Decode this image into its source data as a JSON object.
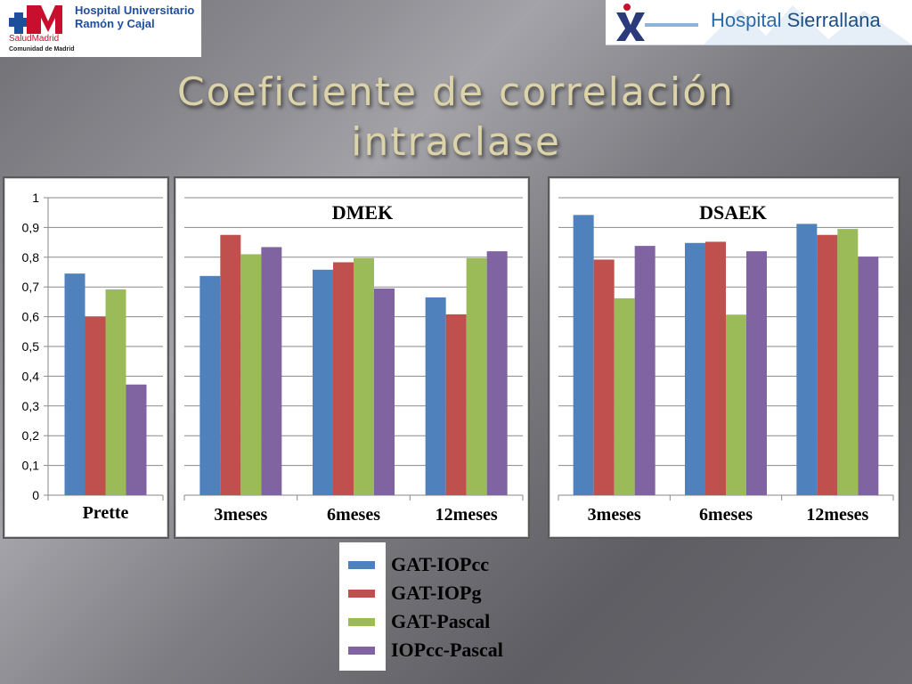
{
  "header": {
    "title_line1": "Coeficiente de correlación",
    "title_line2": "intraclase",
    "logo_left_line1": "Hospital Universitario",
    "logo_left_line2": "Ramón y Cajal",
    "logo_left_salud": "SaludMadrid",
    "logo_left_comunidad": "Comunidad de Madrid",
    "logo_right_word1": "Hospital",
    "logo_right_word2": "Sierrallana"
  },
  "colors": {
    "GAT-IOPcc": "#4f81bd",
    "GAT-IOPg": "#c0504d",
    "GAT-Pascal": "#9bbb59",
    "IOPcc-Pascal": "#8064a2"
  },
  "legend": {
    "items": [
      "GAT-IOPcc",
      "GAT-IOPg",
      "GAT-Pascal",
      "IOPcc-Pascal"
    ]
  },
  "chart_data": [
    {
      "type": "bar",
      "title": "",
      "categories": [
        "Prette"
      ],
      "ylim": [
        0,
        1
      ],
      "yticks": [
        "0",
        "0,1",
        "0,2",
        "0,3",
        "0,4",
        "0,5",
        "0,6",
        "0,7",
        "0,8",
        "0,9",
        "1"
      ],
      "grid": true,
      "series": [
        {
          "name": "GAT-IOPcc",
          "values": [
            0.745
          ]
        },
        {
          "name": "GAT-IOPg",
          "values": [
            0.6
          ]
        },
        {
          "name": "GAT-Pascal",
          "values": [
            0.692
          ]
        },
        {
          "name": "IOPcc-Pascal",
          "values": [
            0.372
          ]
        }
      ]
    },
    {
      "type": "bar",
      "title": "DMEK",
      "categories": [
        "3meses",
        "6meses",
        "12meses"
      ],
      "ylim": [
        0,
        1
      ],
      "grid": true,
      "series": [
        {
          "name": "GAT-IOPcc",
          "values": [
            0.737,
            0.758,
            0.665
          ]
        },
        {
          "name": "GAT-IOPg",
          "values": [
            0.875,
            0.783,
            0.608
          ]
        },
        {
          "name": "GAT-Pascal",
          "values": [
            0.81,
            0.797,
            0.797
          ]
        },
        {
          "name": "IOPcc-Pascal",
          "values": [
            0.834,
            0.695,
            0.82
          ]
        }
      ]
    },
    {
      "type": "bar",
      "title": "DSAEK",
      "categories": [
        "3meses",
        "6meses",
        "12meses"
      ],
      "ylim": [
        0,
        1
      ],
      "grid": true,
      "series": [
        {
          "name": "GAT-IOPcc",
          "values": [
            0.942,
            0.848,
            0.912
          ]
        },
        {
          "name": "GAT-IOPg",
          "values": [
            0.792,
            0.852,
            0.875
          ]
        },
        {
          "name": "GAT-Pascal",
          "values": [
            0.662,
            0.607,
            0.895
          ]
        },
        {
          "name": "IOPcc-Pascal",
          "values": [
            0.838,
            0.82,
            0.802
          ]
        }
      ]
    }
  ]
}
